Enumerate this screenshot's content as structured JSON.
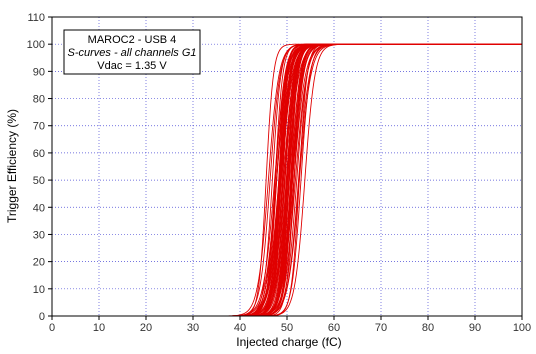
{
  "chart_data": {
    "type": "line",
    "ylabel": "Trigger Efficiency (%)",
    "xlabel": "Injected charge (fC)",
    "xlim": [
      0,
      100
    ],
    "ylim": [
      0,
      110
    ],
    "xticks": [
      "0",
      "10",
      "20",
      "30",
      "40",
      "50",
      "60",
      "70",
      "80",
      "90",
      "100"
    ],
    "yticks": [
      "0",
      "10",
      "20",
      "30",
      "40",
      "50",
      "60",
      "70",
      "80",
      "90",
      "100",
      "110"
    ],
    "grid": true,
    "colors": {
      "series": "#e00000",
      "grid": "#4a4ad6",
      "axis": "#000000"
    },
    "annotation": {
      "lines": [
        "MAROC2 - USB 4",
        "S-curves - all channels G1",
        "Vdac = 1.35 V"
      ]
    },
    "series_description": {
      "count": 64,
      "shape": "s-curve",
      "x50_min": 44.5,
      "x50_max": 55.5,
      "width_fC": 1.6,
      "plateau": 100
    }
  }
}
